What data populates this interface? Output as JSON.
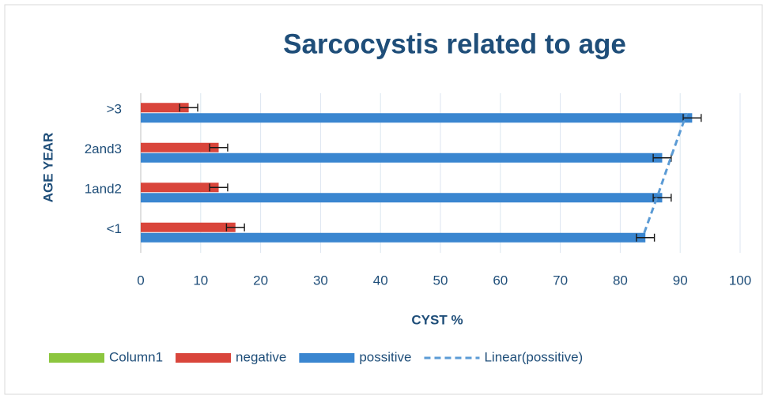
{
  "chart_data": {
    "type": "bar",
    "orientation": "horizontal",
    "title": "Sarcocystis related to age",
    "x_label": "CYST %",
    "y_label": "AGE YEAR",
    "categories": [
      "<1",
      "1and2",
      "2and3",
      ">3"
    ],
    "series": [
      {
        "name": "Column1",
        "color": "#8cc63f",
        "values": [
          null,
          null,
          null,
          null
        ]
      },
      {
        "name": "negative",
        "color": "#d9453b",
        "values": [
          15.8,
          13,
          13,
          8
        ],
        "errors": [
          1.5,
          1.5,
          1.5,
          1.5
        ]
      },
      {
        "name": "possitive",
        "color": "#3a86d0",
        "values": [
          84.2,
          87,
          87,
          92
        ],
        "errors": [
          1.5,
          1.5,
          1.5,
          1.5
        ]
      },
      {
        "name": "Linear(possitive)",
        "type": "line",
        "dashed": true,
        "color": "#5b9bd5",
        "values": [
          84.0,
          86.4,
          88.7,
          91.1
        ]
      }
    ],
    "xlim": [
      0,
      100
    ],
    "xticks": [
      0,
      10,
      20,
      30,
      40,
      50,
      60,
      70,
      80,
      90,
      100
    ],
    "grid": true,
    "legend": "bottom"
  }
}
